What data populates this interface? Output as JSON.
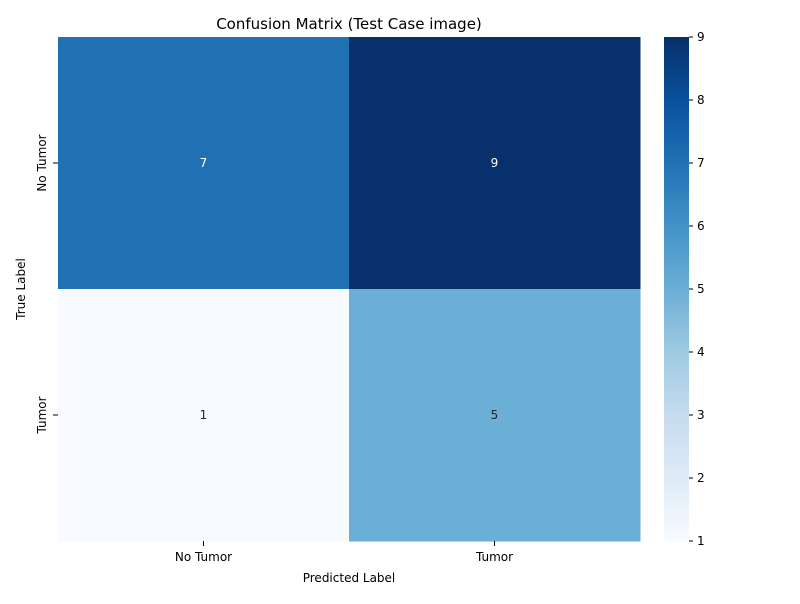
{
  "chart_data": {
    "type": "heatmap",
    "title": "Confusion Matrix (Test Case image)",
    "xlabel": "Predicted Label",
    "ylabel": "True Label",
    "x_categories": [
      "No Tumor",
      "Tumor"
    ],
    "y_categories": [
      "No Tumor",
      "Tumor"
    ],
    "values": [
      [
        7,
        9
      ],
      [
        1,
        5
      ]
    ],
    "colormap": "Blues",
    "colorbar": {
      "min": 1,
      "max": 9,
      "ticks": [
        1,
        2,
        3,
        4,
        5,
        6,
        7,
        8,
        9
      ]
    },
    "colors": {
      "low": "#f7fbff",
      "high": "#08306b"
    }
  }
}
